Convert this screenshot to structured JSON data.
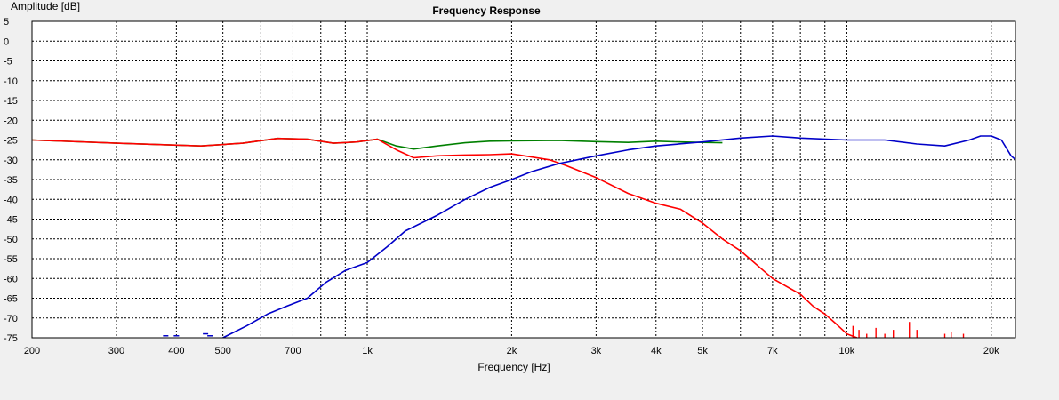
{
  "chart_data": {
    "type": "line",
    "title": "Frequency Response",
    "xlabel": "Frequency [Hz]",
    "ylabel": "Amplitude [dB]",
    "xscale": "log",
    "xlim": [
      200,
      25000
    ],
    "ylim": [
      -75,
      5
    ],
    "grid": true,
    "legend": "none",
    "x_ticks": [
      200,
      300,
      400,
      500,
      700,
      1000,
      2000,
      3000,
      4000,
      5000,
      7000,
      10000,
      20000
    ],
    "x_tick_labels": [
      "200",
      "300",
      "400",
      "500",
      "700",
      "1k",
      "2k",
      "3k",
      "4k",
      "5k",
      "7k",
      "10k",
      "20k"
    ],
    "x_minor_grid": [
      600,
      800,
      900,
      6000,
      8000,
      9000
    ],
    "y_ticks": [
      5,
      0,
      -5,
      -10,
      -15,
      -20,
      -25,
      -30,
      -35,
      -40,
      -45,
      -50,
      -55,
      -60,
      -65,
      -70,
      -75
    ],
    "y_tick_labels": [
      "5",
      "0",
      "-5",
      "-10",
      "-15",
      "-20",
      "-25",
      "-30",
      "-35",
      "-40",
      "-45",
      "-50",
      "-55",
      "-60",
      "-65",
      "-70",
      "-75"
    ],
    "series": [
      {
        "color": "#008000",
        "x": [
          200,
          300,
          450,
          550,
          650,
          750,
          850,
          950,
          1050,
          1150,
          1250,
          1400,
          1600,
          1800,
          2000,
          2500,
          3000,
          3500,
          4000,
          4500,
          5000,
          5500
        ],
        "y": [
          -25,
          -25.8,
          -26.5,
          -25.8,
          -24.6,
          -24.8,
          -25.8,
          -25.5,
          -24.8,
          -26.5,
          -27.3,
          -26.5,
          -25.7,
          -25.3,
          -25.2,
          -25.1,
          -25.4,
          -25.6,
          -25.3,
          -25.5,
          -25.6,
          -25.7
        ]
      },
      {
        "color": "#ff0000",
        "x": [
          200,
          300,
          450,
          550,
          650,
          750,
          850,
          950,
          1050,
          1150,
          1250,
          1400,
          1600,
          1800,
          2000,
          2200,
          2400,
          2600,
          3000,
          3500,
          4000,
          4500,
          5000,
          5500,
          6000,
          7000,
          8000,
          8500,
          9000,
          9500,
          10000,
          10500
        ],
        "y": [
          -25,
          -25.8,
          -26.5,
          -25.8,
          -24.6,
          -24.8,
          -25.8,
          -25.5,
          -24.8,
          -27.5,
          -29.5,
          -29,
          -28.8,
          -28.7,
          -28.5,
          -29.3,
          -30,
          -31.5,
          -34.5,
          -38.5,
          -41,
          -42.5,
          -46,
          -50,
          -53,
          -60,
          -64,
          -67,
          -69,
          -71.5,
          -74,
          -75
        ]
      },
      {
        "color": "#0000c8",
        "x": [
          500,
          560,
          620,
          680,
          750,
          820,
          900,
          1000,
          1100,
          1200,
          1400,
          1600,
          1800,
          2000,
          2200,
          2500,
          3000,
          3500,
          4000,
          5000,
          6000,
          7000,
          8000,
          10000,
          12000,
          14000,
          16000,
          18000,
          19000,
          20000,
          21000,
          22000,
          23000
        ],
        "y": [
          -75,
          -72,
          -69,
          -67,
          -65,
          -61,
          -58,
          -56,
          -52,
          -48,
          -44,
          -40,
          -37,
          -35,
          -33,
          -31,
          -29,
          -27.5,
          -26.5,
          -25.5,
          -24.5,
          -24,
          -24.5,
          -25,
          -25,
          -26,
          -26.5,
          -25,
          -24,
          -24,
          -25,
          -29,
          -31
        ]
      }
    ],
    "spikes": {
      "color": "#ff0000",
      "x": [
        10300,
        10600,
        11000,
        11500,
        12000,
        12500,
        13500,
        14000,
        16000,
        16500,
        17500
      ],
      "y": [
        -72,
        -73,
        -74,
        -72.5,
        -74,
        -73,
        -71,
        -73,
        -74,
        -73.5,
        -74
      ]
    },
    "partial_blue_points": {
      "x": [
        380,
        400,
        460,
        470
      ],
      "y": [
        -74.5,
        -74.5,
        -74,
        -74.5
      ]
    }
  }
}
